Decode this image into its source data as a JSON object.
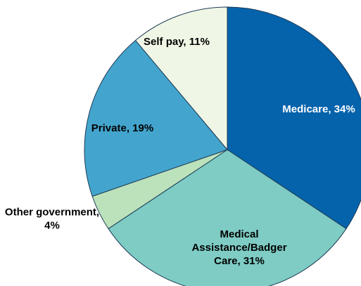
{
  "chart_data": {
    "type": "pie",
    "slices": [
      {
        "label": "Medicare",
        "value": 34,
        "display": [
          "Medicare, 34%"
        ],
        "color": "#0563AC",
        "text_color": "#ffffff",
        "label_inside": true
      },
      {
        "label": "Medical Assistance/Badger Care",
        "value": 31,
        "display": [
          "Medical",
          "Assistance/Badger",
          "Care, 31%"
        ],
        "color": "#7ECCC4",
        "text_color": "#000000",
        "label_inside": true
      },
      {
        "label": "Other government",
        "value": 4,
        "display": [
          "Other government,",
          "4%"
        ],
        "color": "#BCE2BC",
        "text_color": "#000000",
        "label_inside": false
      },
      {
        "label": "Private",
        "value": 19,
        "display": [
          "Private, 19%"
        ],
        "color": "#43A5CE",
        "text_color": "#000000",
        "label_inside": true
      },
      {
        "label": "Self pay",
        "value": 11,
        "display": [
          "Self pay, 11%"
        ],
        "color": "#EFF6E5",
        "text_color": "#000000",
        "label_inside": true
      }
    ],
    "start_angle": "12 o'clock",
    "direction": "clockwise",
    "stroke_color": "#1f3b56"
  }
}
